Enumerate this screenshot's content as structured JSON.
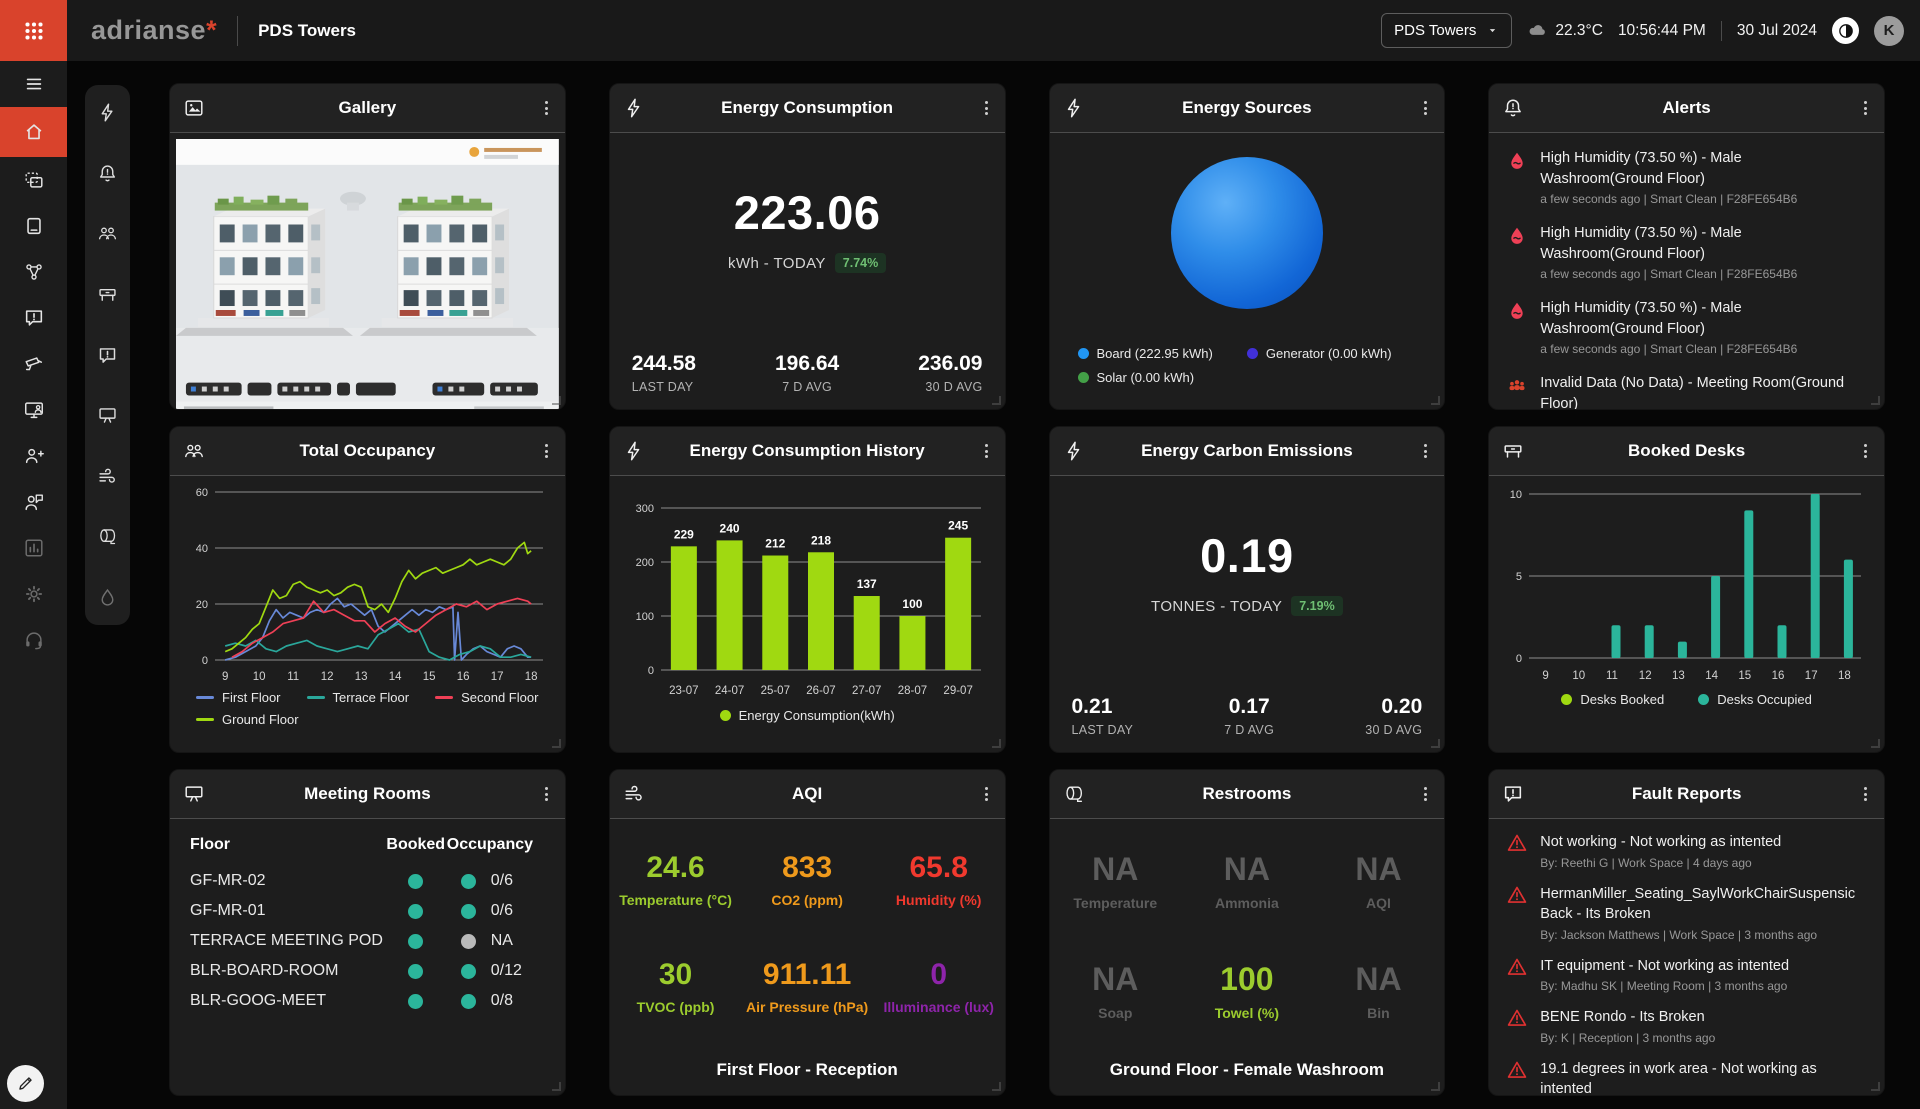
{
  "topbar": {
    "logo": "adrianse",
    "logo_star": "*",
    "page_title": "PDS Towers",
    "site_selector": "PDS Towers",
    "temperature": "22.3°C",
    "time": "10:56:44 PM",
    "date": "30 Jul 2024",
    "avatar_initial": "K"
  },
  "cards": {
    "gallery": {
      "title": "Gallery"
    },
    "energy_consumption": {
      "title": "Energy Consumption",
      "value": "223.06",
      "unit": "kWh - TODAY",
      "delta": "7.74%",
      "stats": [
        {
          "value": "244.58",
          "label": "LAST DAY"
        },
        {
          "value": "196.64",
          "label": "7 D AVG"
        },
        {
          "value": "236.09",
          "label": "30 D AVG"
        }
      ]
    },
    "energy_sources": {
      "title": "Energy Sources"
    },
    "alerts": {
      "title": "Alerts",
      "items": [
        {
          "title": "High Humidity (73.50 %) - Male Washroom(Ground Floor)",
          "meta": "a few seconds ago | Smart Clean | F28FE654B6"
        },
        {
          "title": "High Humidity (73.50 %) - Male Washroom(Ground Floor)",
          "meta": "a few seconds ago | Smart Clean | F28FE654B6"
        },
        {
          "title": "High Humidity (73.50 %) - Male Washroom(Ground Floor)",
          "meta": "a few seconds ago | Smart Clean | F28FE654B6"
        },
        {
          "title": "Invalid Data (No Data) - Meeting Room(Ground Floor)",
          "meta": ""
        }
      ]
    },
    "total_occupancy": {
      "title": "Total Occupancy"
    },
    "energy_history": {
      "title": "Energy Consumption History"
    },
    "carbon": {
      "title": "Energy Carbon Emissions",
      "value": "0.19",
      "unit": "TONNES - TODAY",
      "delta": "7.19%",
      "stats": [
        {
          "value": "0.21",
          "label": "LAST DAY"
        },
        {
          "value": "0.17",
          "label": "7 D AVG"
        },
        {
          "value": "0.20",
          "label": "30 D AVG"
        }
      ]
    },
    "booked_desks": {
      "title": "Booked Desks"
    },
    "meeting_rooms": {
      "title": "Meeting Rooms",
      "columns": [
        "Floor",
        "Booked",
        "Occupancy"
      ],
      "rows": [
        {
          "name": "GF-MR-02",
          "booked_color": "#2bb59b",
          "occupancy_color": "#2bb59b",
          "occupancy": "0/6"
        },
        {
          "name": "GF-MR-01",
          "booked_color": "#2bb59b",
          "occupancy_color": "#2bb59b",
          "occupancy": "0/6"
        },
        {
          "name": "TERRACE MEETING POD",
          "booked_color": "#2bb59b",
          "occupancy_color": "#b9b9b9",
          "occupancy": "NA"
        },
        {
          "name": "BLR-BOARD-ROOM",
          "booked_color": "#2bb59b",
          "occupancy_color": "#2bb59b",
          "occupancy": "0/12"
        },
        {
          "name": "BLR-GOOG-MEET",
          "booked_color": "#2bb59b",
          "occupancy_color": "#2bb59b",
          "occupancy": "0/8"
        }
      ]
    },
    "aqi": {
      "title": "AQI",
      "metrics": [
        {
          "value": "24.6",
          "label": "Temperature (°C)",
          "color": "#9ccc2e"
        },
        {
          "value": "833",
          "label": "CO2 (ppm)",
          "color": "#ef9a1c"
        },
        {
          "value": "65.8",
          "label": "Humidity (%)",
          "color": "#f0392e"
        },
        {
          "value": "30",
          "label": "TVOC (ppb)",
          "color": "#9ccc2e"
        },
        {
          "value": "911.11",
          "label": "Air Pressure (hPa)",
          "color": "#ef9a1c"
        },
        {
          "value": "0",
          "label": "Illuminance (lux)",
          "color": "#8e24aa"
        }
      ],
      "footer": "First Floor - Reception"
    },
    "restrooms": {
      "title": "Restrooms",
      "metrics": [
        {
          "value": "NA",
          "label": "Temperature",
          "color": "#5d5d5d"
        },
        {
          "value": "NA",
          "label": "Ammonia",
          "color": "#5d5d5d"
        },
        {
          "value": "NA",
          "label": "AQI",
          "color": "#5d5d5d"
        },
        {
          "value": "NA",
          "label": "Soap",
          "color": "#5d5d5d"
        },
        {
          "value": "100",
          "label": "Towel (%)",
          "color": "#9ccc2e"
        },
        {
          "value": "NA",
          "label": "Bin",
          "color": "#5d5d5d"
        }
      ],
      "footer": "Ground Floor - Female Washroom"
    },
    "fault_reports": {
      "title": "Fault Reports",
      "items": [
        {
          "title": "Not working - Not working as intented",
          "meta": "By: Reethi G | Work Space | 4 days ago"
        },
        {
          "title": "HermanMiller_Seating_SaylWorkChairSuspensic Back - Its Broken",
          "meta": "By: Jackson Matthews | Work Space | 3 months ago"
        },
        {
          "title": "IT equipment - Not working as intented",
          "meta": "By: Madhu SK | Meeting Room | 3 months ago"
        },
        {
          "title": "BENE Rondo - Its Broken",
          "meta": "By: K | Reception | 3 months ago"
        },
        {
          "title": "19.1 degrees in work area - Not working as intented",
          "meta": ""
        }
      ]
    }
  },
  "chart_data": [
    {
      "id": "energy_sources",
      "type": "pie",
      "title": "Energy Sources",
      "slices": [
        {
          "label": "Board (222.95 kWh)",
          "value": 222.95,
          "color": "#2196f3"
        },
        {
          "label": "Generator (0.00 kWh)",
          "value": 0,
          "color": "#4130d8"
        },
        {
          "label": "Solar (0.00 kWh)",
          "value": 0,
          "color": "#43a047"
        }
      ]
    },
    {
      "id": "total_occupancy",
      "type": "line",
      "title": "Total Occupancy",
      "xlim": [
        8.7,
        18.35
      ],
      "ylim": [
        0,
        60
      ],
      "yticks": [
        0,
        20,
        40,
        60
      ],
      "xticks": [
        9,
        10,
        11,
        12,
        13,
        14,
        15,
        16,
        17,
        18
      ],
      "legend_position": "bottom",
      "series": [
        {
          "name": "First Floor",
          "color": "#6889d8",
          "points": [
            [
              9,
              0
            ],
            [
              9.3,
              1
            ],
            [
              9.6,
              3
            ],
            [
              9.9,
              5
            ],
            [
              10.1,
              8
            ],
            [
              10.3,
              14
            ],
            [
              10.5,
              18
            ],
            [
              10.7,
              15
            ],
            [
              10.9,
              17
            ],
            [
              11.1,
              16
            ],
            [
              11.3,
              15
            ],
            [
              11.5,
              17
            ],
            [
              11.7,
              18
            ],
            [
              11.9,
              17
            ],
            [
              12.1,
              20
            ],
            [
              12.3,
              22
            ],
            [
              12.5,
              19
            ],
            [
              12.7,
              20
            ],
            [
              12.9,
              18
            ],
            [
              13.1,
              16
            ],
            [
              13.3,
              18
            ],
            [
              13.5,
              12
            ],
            [
              13.7,
              10
            ],
            [
              13.9,
              12
            ],
            [
              14.1,
              14
            ],
            [
              14.3,
              16
            ],
            [
              14.5,
              18
            ],
            [
              14.7,
              16
            ],
            [
              14.9,
              18
            ],
            [
              15.1,
              17
            ],
            [
              15.3,
              19
            ],
            [
              15.5,
              18
            ],
            [
              15.7,
              19
            ],
            [
              15.75,
              0
            ],
            [
              15.85,
              17
            ],
            [
              15.95,
              0
            ],
            [
              16.1,
              2
            ],
            [
              16.3,
              4
            ],
            [
              16.5,
              5
            ],
            [
              16.7,
              3
            ],
            [
              16.9,
              2
            ],
            [
              17.1,
              1
            ],
            [
              17.3,
              4
            ],
            [
              17.5,
              5
            ],
            [
              17.7,
              4
            ],
            [
              17.9,
              1
            ],
            [
              18,
              1
            ]
          ]
        },
        {
          "name": "Terrace Floor",
          "color": "#2aa79b",
          "points": [
            [
              9,
              5
            ],
            [
              9.3,
              6
            ],
            [
              9.6,
              5
            ],
            [
              9.9,
              7
            ],
            [
              10.2,
              4
            ],
            [
              10.5,
              3
            ],
            [
              10.8,
              5
            ],
            [
              11.1,
              6
            ],
            [
              11.4,
              7
            ],
            [
              11.7,
              5
            ],
            [
              12,
              4
            ],
            [
              12.3,
              3
            ],
            [
              12.6,
              4
            ],
            [
              12.9,
              5
            ],
            [
              13.2,
              4
            ],
            [
              13.5,
              9
            ],
            [
              13.8,
              11
            ],
            [
              14.1,
              13
            ],
            [
              14.4,
              10
            ],
            [
              14.7,
              11
            ],
            [
              15,
              3
            ],
            [
              15.3,
              1
            ],
            [
              15.6,
              0
            ],
            [
              15.9,
              2
            ],
            [
              16.2,
              3
            ],
            [
              16.5,
              5
            ],
            [
              16.8,
              4
            ],
            [
              17.1,
              1
            ],
            [
              17.4,
              1
            ],
            [
              17.7,
              2
            ],
            [
              18,
              1
            ]
          ]
        },
        {
          "name": "Second Floor",
          "color": "#ef4056",
          "points": [
            [
              9.2,
              1
            ],
            [
              9.5,
              3
            ],
            [
              9.8,
              6
            ],
            [
              10.1,
              8
            ],
            [
              10.4,
              10
            ],
            [
              10.7,
              13
            ],
            [
              11,
              14
            ],
            [
              11.3,
              15
            ],
            [
              11.6,
              21
            ],
            [
              11.9,
              17
            ],
            [
              12.2,
              18
            ],
            [
              12.5,
              16
            ],
            [
              12.8,
              14
            ],
            [
              13.1,
              14
            ],
            [
              13.4,
              10
            ],
            [
              13.7,
              13
            ],
            [
              14,
              15
            ],
            [
              14.3,
              12
            ],
            [
              14.6,
              10
            ],
            [
              14.9,
              13
            ],
            [
              15.2,
              16
            ],
            [
              15.5,
              18
            ],
            [
              15.8,
              20
            ],
            [
              16.1,
              19
            ],
            [
              16.4,
              21
            ],
            [
              16.7,
              18
            ],
            [
              17,
              20
            ],
            [
              17.3,
              21
            ],
            [
              17.6,
              22
            ],
            [
              17.9,
              21
            ],
            [
              18,
              20
            ]
          ]
        },
        {
          "name": "Ground Floor",
          "color": "#a0d911",
          "points": [
            [
              9,
              3
            ],
            [
              9.2,
              4
            ],
            [
              9.4,
              6
            ],
            [
              9.6,
              8
            ],
            [
              9.8,
              11
            ],
            [
              10,
              13
            ],
            [
              10.2,
              19
            ],
            [
              10.4,
              25
            ],
            [
              10.6,
              22
            ],
            [
              10.8,
              23
            ],
            [
              11,
              27
            ],
            [
              11.2,
              28
            ],
            [
              11.4,
              26
            ],
            [
              11.6,
              25
            ],
            [
              11.8,
              24
            ],
            [
              12,
              25
            ],
            [
              12.2,
              23
            ],
            [
              12.4,
              24
            ],
            [
              12.6,
              26
            ],
            [
              12.8,
              27
            ],
            [
              13,
              26
            ],
            [
              13.2,
              19
            ],
            [
              13.4,
              18
            ],
            [
              13.6,
              20
            ],
            [
              13.8,
              17
            ],
            [
              14,
              22
            ],
            [
              14.2,
              28
            ],
            [
              14.4,
              32
            ],
            [
              14.6,
              29
            ],
            [
              14.8,
              31
            ],
            [
              15,
              32
            ],
            [
              15.2,
              33
            ],
            [
              15.4,
              31
            ],
            [
              15.6,
              32
            ],
            [
              15.8,
              33
            ],
            [
              16,
              34
            ],
            [
              16.2,
              36
            ],
            [
              16.4,
              34
            ],
            [
              16.6,
              35
            ],
            [
              16.8,
              36
            ],
            [
              17,
              35
            ],
            [
              17.2,
              34
            ],
            [
              17.4,
              36
            ],
            [
              17.6,
              40
            ],
            [
              17.8,
              42
            ],
            [
              17.9,
              38
            ],
            [
              18,
              39
            ]
          ]
        }
      ]
    },
    {
      "id": "energy_history",
      "type": "bar",
      "title": "Energy Consumption History",
      "categories": [
        "23-07",
        "24-07",
        "25-07",
        "26-07",
        "27-07",
        "28-07",
        "29-07"
      ],
      "values": [
        229,
        240,
        212,
        218,
        137,
        100,
        245
      ],
      "ylim": [
        0,
        300
      ],
      "yticks": [
        0,
        100,
        200,
        300
      ],
      "series_label": "Energy Consumption(kWh)",
      "color": "#a0d911"
    },
    {
      "id": "booked_desks",
      "type": "bar",
      "title": "Booked Desks",
      "categories": [
        9,
        10,
        11,
        12,
        13,
        14,
        15,
        16,
        17,
        18
      ],
      "ylim": [
        0,
        10
      ],
      "yticks": [
        0,
        5,
        10
      ],
      "series": [
        {
          "name": "Desks Booked",
          "color": "#a0d911",
          "values": [
            0,
            0,
            0,
            0,
            0,
            0,
            0,
            0,
            0,
            0
          ]
        },
        {
          "name": "Desks Occupied",
          "color": "#2bb59b",
          "values": [
            0,
            0,
            2,
            2,
            1,
            5,
            9,
            2,
            10,
            6
          ]
        }
      ]
    }
  ]
}
